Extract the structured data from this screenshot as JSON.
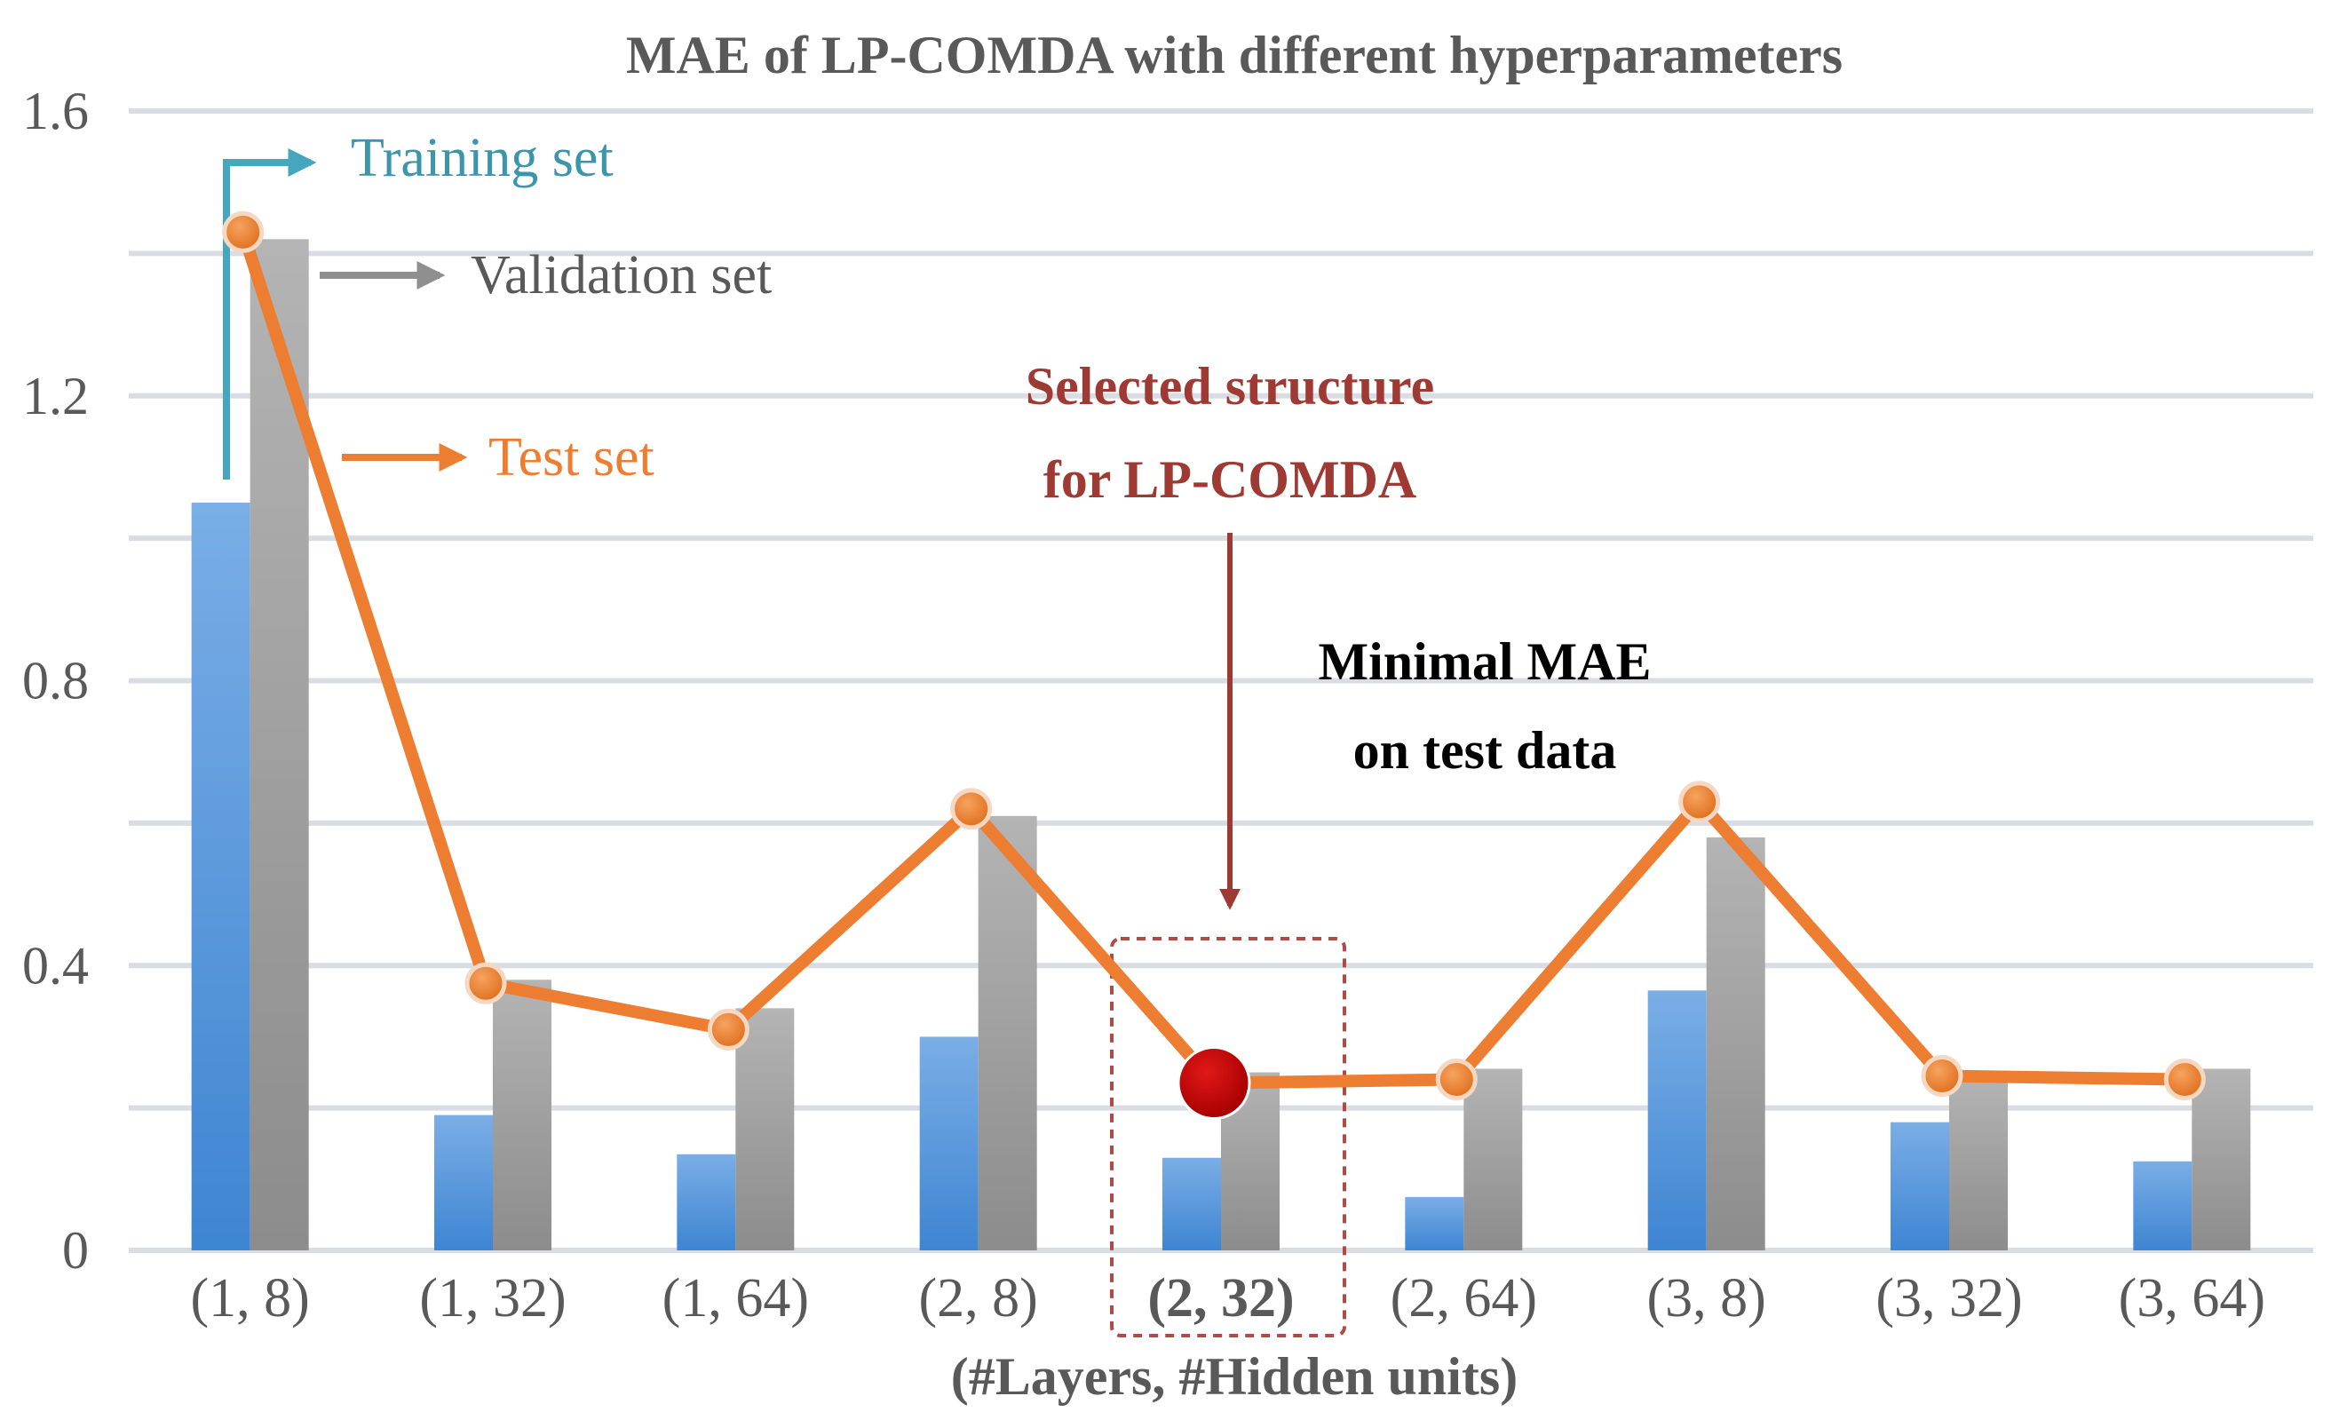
{
  "colors": {
    "training": "#4a8fd6",
    "validation": "#9a9a9a",
    "test": "#ed7d31",
    "selected": "#c00000",
    "annotation": "#9e3a33",
    "grid": "#d9dde3",
    "text_gray": "#595959"
  },
  "chart_data": {
    "type": "bar",
    "title": "MAE of LP-COMDA with different hyperparameters",
    "xlabel": "(#Layers, #Hidden units)",
    "ylabel": "",
    "ylim": [
      0,
      1.6
    ],
    "y_ticks": [
      0,
      0.4,
      0.8,
      1.2,
      1.6
    ],
    "y_tick_labels": [
      "0",
      "0.4",
      "0.8",
      "1.2",
      "1.6"
    ],
    "grid": true,
    "categories": [
      "(1, 8)",
      "(1, 32)",
      "(1, 64)",
      "(2, 8)",
      "(2, 32)",
      "(2, 64)",
      "(3, 8)",
      "(3, 32)",
      "(3, 64)"
    ],
    "series": [
      {
        "name": "Training set",
        "kind": "bar",
        "values": [
          1.05,
          0.19,
          0.135,
          0.3,
          0.13,
          0.075,
          0.365,
          0.18,
          0.125
        ]
      },
      {
        "name": "Validation set",
        "kind": "bar",
        "values": [
          1.42,
          0.38,
          0.34,
          0.61,
          0.25,
          0.255,
          0.58,
          0.245,
          0.255
        ]
      },
      {
        "name": "Test set",
        "kind": "line",
        "values": [
          1.43,
          0.375,
          0.31,
          0.62,
          0.235,
          0.24,
          0.63,
          0.245,
          0.24
        ]
      }
    ],
    "selected_index": 4,
    "annotations": {
      "selected_line1": "Selected structure",
      "selected_line2": "for LP-COMDA",
      "minimal_line1": "Minimal MAE",
      "minimal_line2": "on test data"
    }
  }
}
